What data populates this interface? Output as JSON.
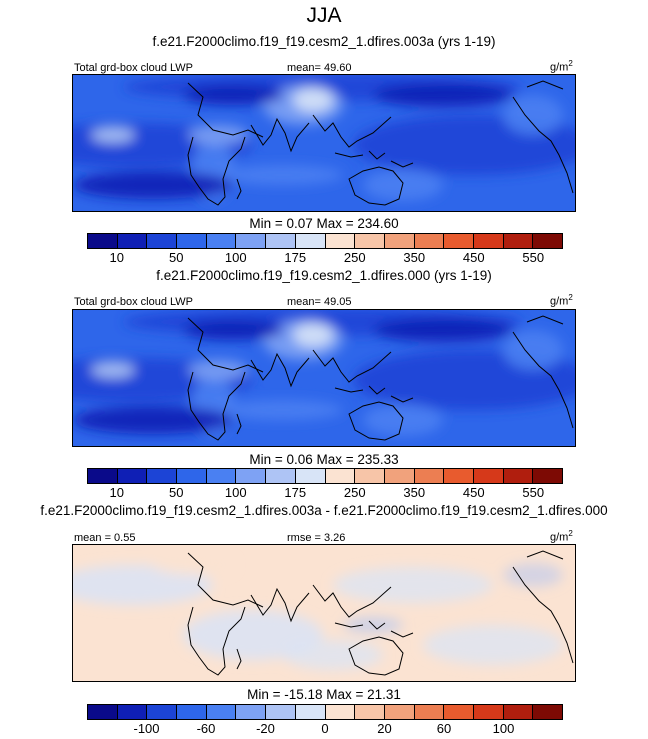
{
  "figure": {
    "title": "JJA",
    "difference_title": "f.e21.F2000climo.f19_f19.cesm2_1.dfires.003a - f.e21.F2000climo.f19_f19.cesm2_1.dfires.000"
  },
  "chart_data": [
    {
      "type": "heatmap",
      "subtitle": "f.e21.F2000climo.f19_f19.cesm2_1.dfires.003a (yrs 1-19)",
      "variable": "Total grd-box cloud LWP",
      "stat_label": "mean=  49.60",
      "units": "g/m",
      "units_sup": "2",
      "min_max": "Min =   0.07 Max = 234.60",
      "min": 0.07,
      "max": 234.6,
      "mean": 49.6,
      "colorbar": {
        "colors": [
          "#0a0a8a",
          "#0f1fb5",
          "#1c44d6",
          "#2e66ea",
          "#4a80f2",
          "#7ea2f4",
          "#aec4f5",
          "#d8e4f7",
          "#fbe3d2",
          "#f7c5a8",
          "#f1a27c",
          "#ec7e52",
          "#e85b2e",
          "#d6391a",
          "#b01e0e",
          "#7d0a04"
        ],
        "tick_labels": [
          "10",
          "50",
          "100",
          "175",
          "250",
          "350",
          "450",
          "550"
        ]
      }
    },
    {
      "type": "heatmap",
      "subtitle": "f.e21.F2000climo.f19_f19.cesm2_1.dfires.000 (yrs 1-19)",
      "variable": "Total grd-box cloud LWP",
      "stat_label": "mean=  49.05",
      "units": "g/m",
      "units_sup": "2",
      "min_max": "Min =   0.06 Max = 235.33",
      "min": 0.06,
      "max": 235.33,
      "mean": 49.05,
      "colorbar": {
        "colors": [
          "#0a0a8a",
          "#0f1fb5",
          "#1c44d6",
          "#2e66ea",
          "#4a80f2",
          "#7ea2f4",
          "#aec4f5",
          "#d8e4f7",
          "#fbe3d2",
          "#f7c5a8",
          "#f1a27c",
          "#ec7e52",
          "#e85b2e",
          "#d6391a",
          "#b01e0e",
          "#7d0a04"
        ],
        "tick_labels": [
          "10",
          "50",
          "100",
          "175",
          "250",
          "350",
          "450",
          "550"
        ]
      }
    },
    {
      "type": "heatmap",
      "mean_label": "mean =   0.55",
      "stat_label": "rmse =   3.26",
      "units": "g/m",
      "units_sup": "2",
      "min_max": "Min = -15.18 Max =  21.31",
      "min": -15.18,
      "max": 21.31,
      "mean": 0.55,
      "rmse": 3.26,
      "colorbar": {
        "colors": [
          "#0a0a8a",
          "#0f1fb5",
          "#1c44d6",
          "#2e66ea",
          "#4a80f2",
          "#7ea2f4",
          "#aec4f5",
          "#d8e4f7",
          "#fbe3d2",
          "#f7c5a8",
          "#f1a27c",
          "#ec7e52",
          "#e85b2e",
          "#d6391a",
          "#b01e0e",
          "#7d0a04"
        ],
        "tick_labels": [
          "-100",
          "-60",
          "-20",
          "0",
          "20",
          "60",
          "100"
        ]
      }
    }
  ]
}
